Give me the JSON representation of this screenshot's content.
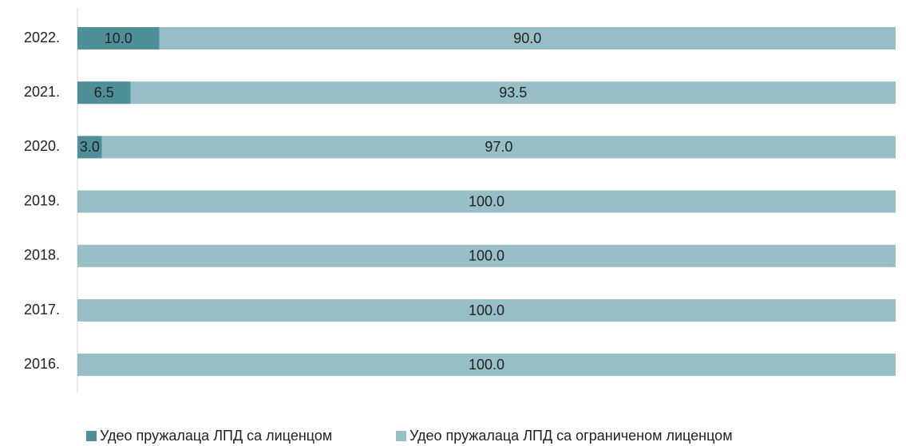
{
  "chart_data": {
    "type": "stacked-bar-horizontal",
    "categories": [
      "2022.",
      "2021.",
      "2020.",
      "2019.",
      "2018.",
      "2017.",
      "2016."
    ],
    "series": [
      {
        "name": "Удео пружалаца ЛПД са лиценцом",
        "color": "#4f8f98",
        "values": [
          10.0,
          6.5,
          3.0,
          null,
          null,
          null,
          null
        ],
        "value_labels": [
          "10.0",
          "6.5",
          "3.0",
          null,
          null,
          null,
          null
        ]
      },
      {
        "name": "Удео пружалаца ЛПД са ограниченом лиценцом",
        "color": "#98bec6",
        "values": [
          90.0,
          93.5,
          97.0,
          100.0,
          100.0,
          100.0,
          100.0
        ],
        "value_labels": [
          "90.0",
          "93.5",
          "97.0",
          "100.0",
          "100.0",
          "100.0",
          "100.0"
        ]
      }
    ],
    "xlim": [
      0,
      100
    ],
    "legend": "bottom"
  }
}
